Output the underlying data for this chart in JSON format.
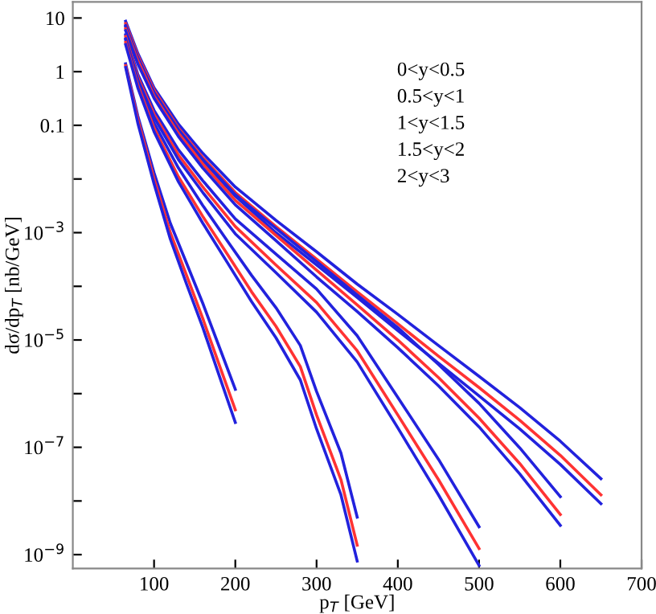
{
  "chart_data": {
    "type": "line",
    "xlabel": "p$_{T}$ [GeV]",
    "ylabel": "dσ/dp$_{T}$ [nb/GeV]",
    "log": "y",
    "xlim": [
      0,
      700
    ],
    "ylim": [
      5.5e-10,
      20
    ],
    "xticks": [
      100,
      200,
      300,
      400,
      500,
      600,
      700
    ],
    "yticks": [
      10,
      1,
      0.1,
      {
        "value": 0.01,
        "label": null
      },
      {
        "value": 0.001,
        "label": "10$^{−3}$"
      },
      {
        "value": 0.0001,
        "label": null
      },
      {
        "value": 1e-05,
        "label": "10$^{−5}$"
      },
      {
        "value": 1e-06,
        "label": null
      },
      {
        "value": 1e-07,
        "label": "10$^{−7}$"
      },
      {
        "value": 1e-08,
        "label": null
      },
      {
        "value": 1e-09,
        "label": "10$^{−9}$"
      }
    ],
    "grid": false,
    "marker": "none",
    "line_style": "solid",
    "annotations": [
      "0<y<0.5",
      "0.5<y<1",
      "1<y<1.5",
      "1.5<y<2",
      "2<y<3"
    ],
    "series": [
      {
        "color": "#2222dd",
        "x": [
          65,
          80,
          100,
          130,
          160,
          200,
          250,
          300,
          350,
          400,
          450,
          500,
          550,
          600,
          650
        ],
        "values": [
          8.7,
          2.2,
          0.5,
          0.105,
          0.03,
          0.0071,
          0.0017,
          0.00044,
          0.00011,
          3e-05,
          7.9e-06,
          2.1e-06,
          5.5e-07,
          1.3e-07,
          2.6e-08
        ]
      },
      {
        "color": "#ff3333",
        "x": [
          65,
          80,
          100,
          130,
          160,
          200,
          250,
          300,
          350,
          400,
          450,
          500,
          550,
          600,
          650
        ],
        "values": [
          7.9,
          2.0,
          0.45,
          0.089,
          0.025,
          0.0056,
          0.0013,
          0.00032,
          7.9e-05,
          2e-05,
          5e-06,
          1.3e-06,
          3.2e-07,
          7.1e-08,
          1.3e-08
        ]
      },
      {
        "color": "#2222dd",
        "x": [
          65,
          80,
          100,
          130,
          160,
          200,
          250,
          300,
          350,
          400,
          450,
          500,
          550,
          600,
          650
        ],
        "values": [
          7.2,
          1.8,
          0.4,
          0.078,
          0.022,
          0.0048,
          0.001,
          0.00025,
          6.2e-05,
          1.5e-05,
          3.7e-06,
          9.1e-07,
          2.2e-07,
          4.8e-08,
          8.9e-09
        ]
      },
      {
        "color": "#2222dd",
        "x": [
          65,
          80,
          100,
          130,
          160,
          200,
          250,
          300,
          350,
          400,
          450,
          500,
          550,
          600
        ],
        "values": [
          6.9,
          1.8,
          0.41,
          0.083,
          0.023,
          0.0051,
          0.0012,
          0.00029,
          6.9e-05,
          1.7e-05,
          3.5e-06,
          6.6e-07,
          9.8e-08,
          1.2e-08
        ]
      },
      {
        "color": "#ff3333",
        "x": [
          65,
          80,
          100,
          130,
          160,
          200,
          250,
          300,
          350,
          400,
          450,
          500,
          550,
          600
        ],
        "values": [
          6.3,
          1.6,
          0.35,
          0.071,
          0.019,
          0.004,
          0.00089,
          0.0002,
          4.5e-05,
          1e-05,
          2e-06,
          3.5e-07,
          5e-08,
          5.6e-09
        ]
      },
      {
        "color": "#2222dd",
        "x": [
          65,
          80,
          100,
          130,
          160,
          200,
          250,
          300,
          350,
          400,
          450,
          500,
          550,
          600
        ],
        "values": [
          5.8,
          1.4,
          0.32,
          0.062,
          0.016,
          0.0033,
          0.00071,
          0.00015,
          3.4e-05,
          7.2e-06,
          1.4e-06,
          2.4e-07,
          3.2e-08,
          3.5e-09
        ]
      },
      {
        "color": "#2222dd",
        "x": [
          65,
          80,
          100,
          130,
          160,
          200,
          250,
          300,
          350,
          400,
          450,
          500
        ],
        "values": [
          4.9,
          0.89,
          0.19,
          0.035,
          0.0093,
          0.0018,
          0.0004,
          8.9e-05,
          1.2e-05,
          8.5e-07,
          6e-08,
          3.3e-09
        ]
      },
      {
        "color": "#ff3333",
        "x": [
          65,
          80,
          100,
          130,
          160,
          200,
          250,
          300,
          350,
          400,
          450,
          500
        ],
        "values": [
          4.5,
          0.79,
          0.16,
          0.028,
          0.0071,
          0.0013,
          0.00025,
          5e-05,
          6.3e-06,
          4e-07,
          2.5e-08,
          1.3e-09
        ]
      },
      {
        "color": "#2222dd",
        "x": [
          65,
          80,
          100,
          130,
          160,
          200,
          250,
          300,
          350,
          400,
          450,
          500
        ],
        "values": [
          4.1,
          0.71,
          0.14,
          0.023,
          0.0056,
          0.00095,
          0.00018,
          3.3e-05,
          3.9e-06,
          2.3e-07,
          1.3e-08,
          6.3e-10
        ]
      },
      {
        "color": "#2222dd",
        "x": [
          65,
          80,
          100,
          130,
          160,
          190,
          220,
          250,
          280,
          300,
          330,
          350
        ],
        "values": [
          3.9,
          0.65,
          0.11,
          0.016,
          0.0032,
          0.00071,
          0.00016,
          4e-05,
          7.9e-06,
          1.1e-06,
          7.8e-08,
          5e-09
        ]
      },
      {
        "color": "#ff3333",
        "x": [
          65,
          80,
          100,
          130,
          160,
          190,
          220,
          250,
          280,
          300,
          330,
          350
        ],
        "values": [
          3.5,
          0.56,
          0.089,
          0.011,
          0.002,
          0.0004,
          7.9e-05,
          1.8e-05,
          3.2e-06,
          4e-07,
          2.5e-08,
          1.5e-09
        ]
      },
      {
        "color": "#2222dd",
        "x": [
          65,
          80,
          100,
          130,
          160,
          190,
          220,
          250,
          280,
          300,
          330,
          350
        ],
        "values": [
          3.2,
          0.5,
          0.076,
          0.0089,
          0.0015,
          0.00028,
          5.2e-05,
          1.1e-05,
          1.8e-06,
          2.2e-07,
          1.3e-08,
          7.6e-10
        ]
      },
      {
        "color": "#2222dd",
        "x": [
          65,
          80,
          100,
          120,
          140,
          160,
          180,
          200
        ],
        "values": [
          1.4,
          0.15,
          0.013,
          0.0015,
          0.00027,
          4.8e-05,
          7.6e-06,
          1.2e-06
        ]
      },
      {
        "color": "#ff3333",
        "x": [
          65,
          80,
          100,
          120,
          140,
          160,
          180,
          200
        ],
        "values": [
          1.3,
          0.13,
          0.01,
          0.001,
          0.00016,
          2.5e-05,
          3.5e-06,
          5e-07
        ]
      },
      {
        "color": "#2222dd",
        "x": [
          65,
          80,
          100,
          120,
          140,
          160,
          180,
          200
        ],
        "values": [
          1.2,
          0.11,
          0.0081,
          0.00076,
          0.00011,
          1.7e-05,
          2.2e-06,
          2.9e-07
        ]
      }
    ]
  }
}
